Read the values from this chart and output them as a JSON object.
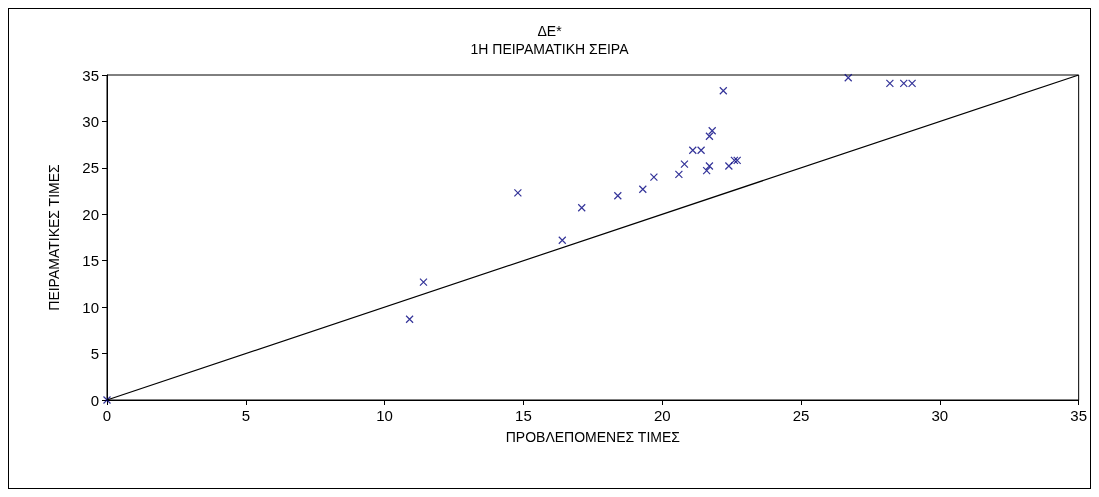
{
  "chart_data": {
    "type": "scatter",
    "title": "ΔΕ*",
    "subtitle": "1Η ΠΕΙΡΑΜΑΤΙΚΗ ΣΕΙΡΑ",
    "xlabel": "ΠΡΟΒΛΕΠΟΜΕΝΕΣ ΤΙΜΕΣ",
    "ylabel": "ΠΕΙΡΑΜΑΤΙΚΕΣ ΤΙΜΕΣ",
    "xlim": [
      0,
      35
    ],
    "ylim": [
      0,
      35
    ],
    "xticks": [
      0,
      5,
      10,
      15,
      20,
      25,
      30,
      35
    ],
    "yticks": [
      0,
      5,
      10,
      15,
      20,
      25,
      30,
      35
    ],
    "grid": false,
    "series": [
      {
        "type": "scatter",
        "color": "#000080",
        "marker": "cross",
        "x": [
          0,
          10.9,
          11.4,
          14.8,
          16.4,
          17.1,
          18.4,
          19.3,
          19.7,
          20.6,
          20.8,
          21.1,
          21.4,
          21.6,
          21.7,
          21.7,
          21.8,
          22.4,
          22.6,
          22.7,
          22.2,
          26.7,
          28.2,
          28.7,
          29.0
        ],
        "values": [
          0,
          8.7,
          12.7,
          22.3,
          17.2,
          20.7,
          22.0,
          22.7,
          24.0,
          24.3,
          25.4,
          26.9,
          26.9,
          24.7,
          25.2,
          28.4,
          29.0,
          25.2,
          25.8,
          25.8,
          33.3,
          34.7,
          34.1,
          34.1,
          34.1
        ]
      },
      {
        "type": "line",
        "color": "#000000",
        "marker": "none",
        "line_style": "solid",
        "x": [
          0,
          35
        ],
        "values": [
          0,
          35
        ]
      }
    ]
  }
}
